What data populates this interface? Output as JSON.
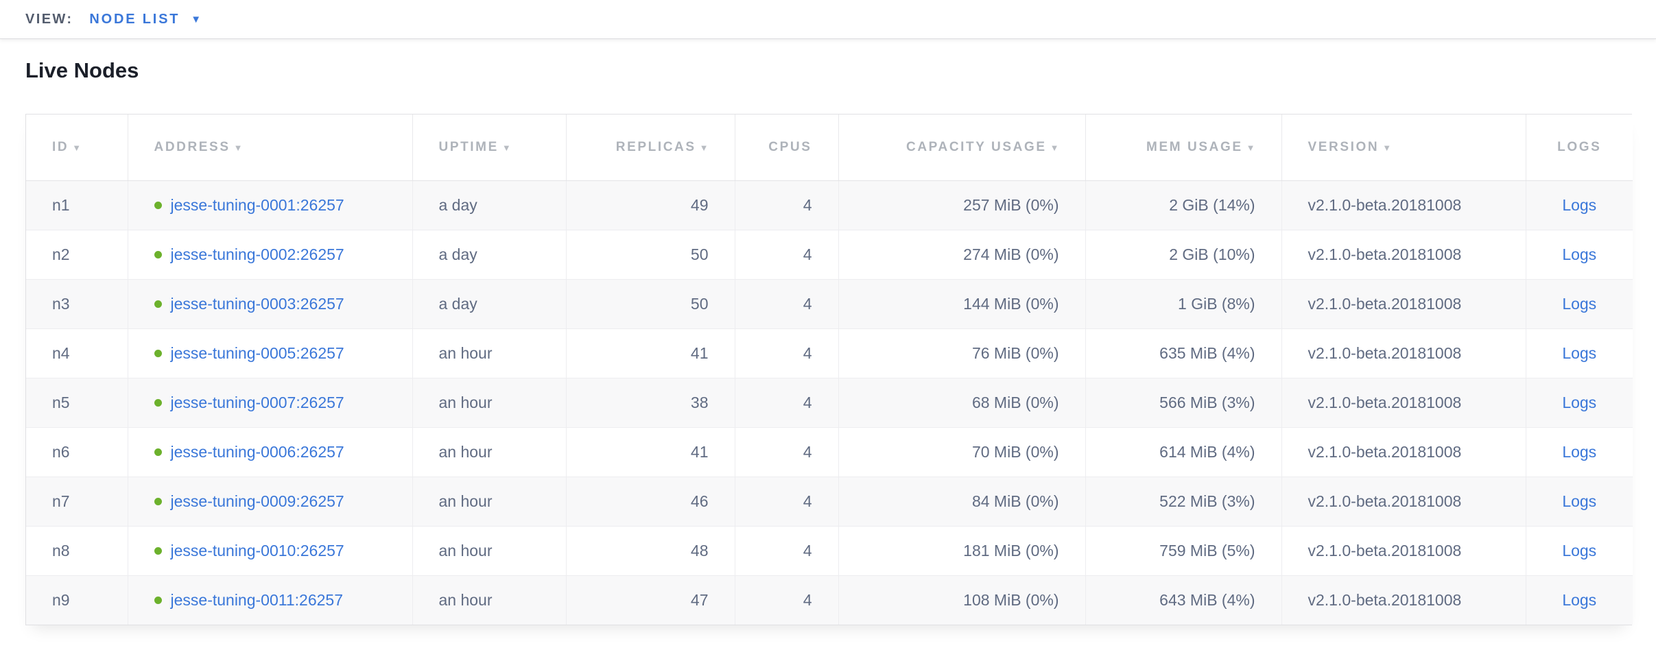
{
  "topbar": {
    "view_label": "VIEW:",
    "view_value": "NODE LIST"
  },
  "icons": {
    "dropdown_arrow": "▼",
    "sort_arrow": "▼",
    "live_status_dot": "green-circle"
  },
  "page": {
    "title": "Live Nodes"
  },
  "colors": {
    "accent_blue": "#3a77d9",
    "status_green": "#6cb12c",
    "header_gray": "#aeb3ba",
    "body_slate": "#606b82",
    "row_stripe": "#f8f8f9"
  },
  "table": {
    "columns": [
      {
        "key": "id",
        "label": "ID",
        "sortable": true,
        "align": "left"
      },
      {
        "key": "address",
        "label": "ADDRESS",
        "sortable": true,
        "align": "left"
      },
      {
        "key": "uptime",
        "label": "UPTIME",
        "sortable": true,
        "align": "left"
      },
      {
        "key": "replicas",
        "label": "REPLICAS",
        "sortable": true,
        "align": "right"
      },
      {
        "key": "cpus",
        "label": "CPUS",
        "sortable": false,
        "align": "right"
      },
      {
        "key": "capacity",
        "label": "CAPACITY USAGE",
        "sortable": true,
        "align": "right"
      },
      {
        "key": "mem",
        "label": "MEM USAGE",
        "sortable": true,
        "align": "right"
      },
      {
        "key": "version",
        "label": "VERSION",
        "sortable": true,
        "align": "left"
      },
      {
        "key": "logs",
        "label": "LOGS",
        "sortable": false,
        "align": "center"
      }
    ],
    "rows": [
      {
        "id": "n1",
        "status": "live",
        "address": "jesse-tuning-0001:26257",
        "uptime": "a day",
        "replicas": "49",
        "cpus": "4",
        "capacity": "257 MiB (0%)",
        "mem": "2 GiB (14%)",
        "version": "v2.1.0-beta.20181008",
        "logs": "Logs"
      },
      {
        "id": "n2",
        "status": "live",
        "address": "jesse-tuning-0002:26257",
        "uptime": "a day",
        "replicas": "50",
        "cpus": "4",
        "capacity": "274 MiB (0%)",
        "mem": "2 GiB (10%)",
        "version": "v2.1.0-beta.20181008",
        "logs": "Logs"
      },
      {
        "id": "n3",
        "status": "live",
        "address": "jesse-tuning-0003:26257",
        "uptime": "a day",
        "replicas": "50",
        "cpus": "4",
        "capacity": "144 MiB (0%)",
        "mem": "1 GiB (8%)",
        "version": "v2.1.0-beta.20181008",
        "logs": "Logs"
      },
      {
        "id": "n4",
        "status": "live",
        "address": "jesse-tuning-0005:26257",
        "uptime": "an hour",
        "replicas": "41",
        "cpus": "4",
        "capacity": "76 MiB (0%)",
        "mem": "635 MiB (4%)",
        "version": "v2.1.0-beta.20181008",
        "logs": "Logs"
      },
      {
        "id": "n5",
        "status": "live",
        "address": "jesse-tuning-0007:26257",
        "uptime": "an hour",
        "replicas": "38",
        "cpus": "4",
        "capacity": "68 MiB (0%)",
        "mem": "566 MiB (3%)",
        "version": "v2.1.0-beta.20181008",
        "logs": "Logs"
      },
      {
        "id": "n6",
        "status": "live",
        "address": "jesse-tuning-0006:26257",
        "uptime": "an hour",
        "replicas": "41",
        "cpus": "4",
        "capacity": "70 MiB (0%)",
        "mem": "614 MiB (4%)",
        "version": "v2.1.0-beta.20181008",
        "logs": "Logs"
      },
      {
        "id": "n7",
        "status": "live",
        "address": "jesse-tuning-0009:26257",
        "uptime": "an hour",
        "replicas": "46",
        "cpus": "4",
        "capacity": "84 MiB (0%)",
        "mem": "522 MiB (3%)",
        "version": "v2.1.0-beta.20181008",
        "logs": "Logs"
      },
      {
        "id": "n8",
        "status": "live",
        "address": "jesse-tuning-0010:26257",
        "uptime": "an hour",
        "replicas": "48",
        "cpus": "4",
        "capacity": "181 MiB (0%)",
        "mem": "759 MiB (5%)",
        "version": "v2.1.0-beta.20181008",
        "logs": "Logs"
      },
      {
        "id": "n9",
        "status": "live",
        "address": "jesse-tuning-0011:26257",
        "uptime": "an hour",
        "replicas": "47",
        "cpus": "4",
        "capacity": "108 MiB (0%)",
        "mem": "643 MiB (4%)",
        "version": "v2.1.0-beta.20181008",
        "logs": "Logs"
      }
    ]
  }
}
